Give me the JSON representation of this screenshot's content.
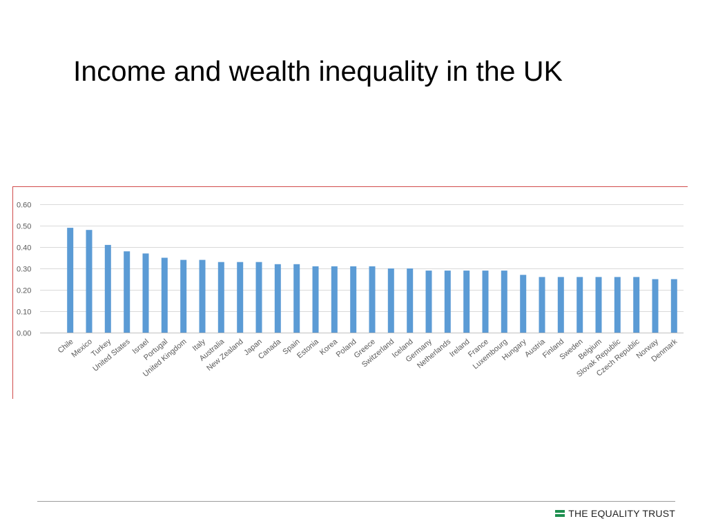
{
  "slide": {
    "title": "Income and wealth inequality in the UK"
  },
  "footer": {
    "brand_name": "THE EQUALITY TRUST",
    "brand_color": "#1e8f4f"
  },
  "chart_data": {
    "type": "bar",
    "title": "",
    "xlabel": "",
    "ylabel": "",
    "ylim": [
      0,
      0.6
    ],
    "yticks": [
      "0.00",
      "0.10",
      "0.20",
      "0.30",
      "0.40",
      "0.50",
      "0.60"
    ],
    "grid": true,
    "legend": "none",
    "bar_color": "#5b9bd5",
    "frame_color": "#d04a4a",
    "categories": [
      "Chile",
      "Mexico",
      "Turkey",
      "United States",
      "Israel",
      "Portugal",
      "United Kingdom",
      "Italy",
      "Australia",
      "New Zealand",
      "Japan",
      "Canada",
      "Spain",
      "Estonia",
      "Korea",
      "Poland",
      "Greece",
      "Switzerland",
      "Iceland",
      "Germany",
      "Netherlands",
      "Ireland",
      "France",
      "Luxembourg",
      "Hungary",
      "Austria",
      "Finland",
      "Sweden",
      "Belgium",
      "Slovak Republic",
      "Czech Republic",
      "Norway",
      "Denmark"
    ],
    "values": [
      0.49,
      0.48,
      0.41,
      0.38,
      0.37,
      0.35,
      0.34,
      0.34,
      0.33,
      0.33,
      0.33,
      0.32,
      0.32,
      0.31,
      0.31,
      0.31,
      0.31,
      0.3,
      0.3,
      0.29,
      0.29,
      0.29,
      0.29,
      0.29,
      0.27,
      0.26,
      0.26,
      0.26,
      0.26,
      0.26,
      0.26,
      0.25,
      0.25
    ]
  }
}
